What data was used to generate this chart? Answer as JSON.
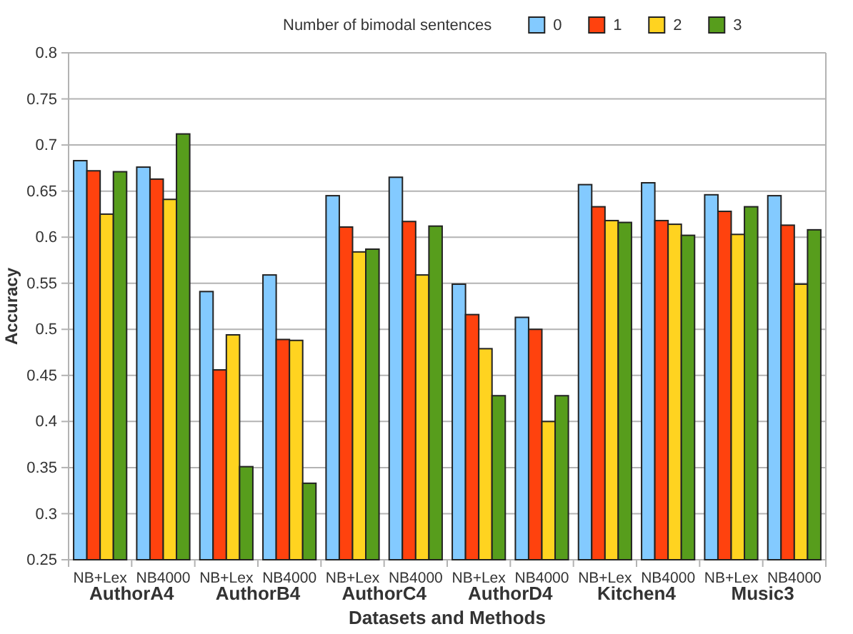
{
  "chart_data": {
    "type": "bar",
    "xlabel": "Datasets and Methods",
    "ylabel": "Accuracy",
    "legend_title": "Number of bimodal sentences",
    "categories": [
      "NB+Lex",
      "NB4000",
      "NB+Lex",
      "NB4000",
      "NB+Lex",
      "NB4000",
      "NB+Lex",
      "NB4000",
      "NB+Lex",
      "NB4000",
      "NB+Lex",
      "NB4000"
    ],
    "annotations": [
      "AuthorA4",
      "AuthorB4",
      "AuthorC4",
      "AuthorD4",
      "Kitchen4",
      "Music3"
    ],
    "series": [
      {
        "name": "0",
        "color": "#83caff",
        "values": [
          0.683,
          0.676,
          0.541,
          0.559,
          0.645,
          0.665,
          0.549,
          0.513,
          0.657,
          0.659,
          0.646,
          0.645
        ]
      },
      {
        "name": "1",
        "color": "#ff420e",
        "values": [
          0.672,
          0.663,
          0.456,
          0.489,
          0.611,
          0.617,
          0.516,
          0.5,
          0.633,
          0.618,
          0.628,
          0.613
        ]
      },
      {
        "name": "2",
        "color": "#ffd320",
        "values": [
          0.625,
          0.641,
          0.494,
          0.488,
          0.584,
          0.559,
          0.479,
          0.4,
          0.618,
          0.614,
          0.603,
          0.549
        ]
      },
      {
        "name": "3",
        "color": "#579d1c",
        "values": [
          0.671,
          0.712,
          0.351,
          0.333,
          0.587,
          0.612,
          0.428,
          0.428,
          0.616,
          0.602,
          0.633,
          0.608
        ]
      }
    ],
    "ylim": [
      0.25,
      0.8
    ],
    "yticks": [
      0.25,
      0.3,
      0.35,
      0.4,
      0.45,
      0.5,
      0.55,
      0.6,
      0.65,
      0.7,
      0.75,
      0.8
    ],
    "grid": "y",
    "legend": "top"
  }
}
